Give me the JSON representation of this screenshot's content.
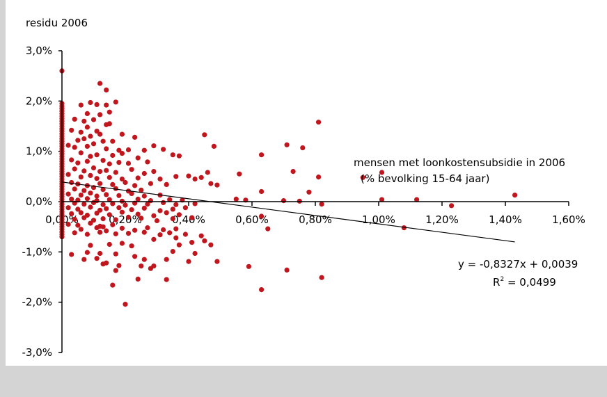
{
  "chart_data": {
    "type": "scatter",
    "ylabel": "residu 2006",
    "xlabel_line1": "mensen met loonkostensubsidie in 2006",
    "xlabel_line2": "(% bevolking 15-64 jaar)",
    "xlim": [
      0,
      0.016
    ],
    "ylim": [
      -0.03,
      0.03
    ],
    "x_ticks": [
      "0,00%",
      "0,20%",
      "0,40%",
      "0,60%",
      "0,80%",
      "1,00%",
      "1,20%",
      "1,40%",
      "1,60%"
    ],
    "y_ticks": [
      "3,0%",
      "2,0%",
      "1,0%",
      "0,0%",
      "-1,0%",
      "-2,0%",
      "-3,0%"
    ],
    "grid": false,
    "marker_color": "#c0161e",
    "trendline": {
      "slope": -0.8327,
      "intercept": 0.0039,
      "x_range": [
        0,
        0.0143
      ],
      "equation": "y = -0,8327x + 0,0039",
      "r2_base": "R",
      "r2_exp": "2",
      "r2_value": " = 0,0499"
    },
    "series": [
      {
        "points": [
          [
            0.0,
            0.026
          ],
          [
            0.0,
            0.0195
          ],
          [
            0.0,
            0.019
          ],
          [
            0.0,
            0.0185
          ],
          [
            0.0,
            0.018
          ],
          [
            0.0,
            0.0175
          ],
          [
            0.0,
            0.017
          ],
          [
            0.0,
            0.0165
          ],
          [
            0.0,
            0.016
          ],
          [
            0.0,
            0.0155
          ],
          [
            0.0,
            0.015
          ],
          [
            0.0,
            0.0145
          ],
          [
            0.0,
            0.014
          ],
          [
            0.0,
            0.0135
          ],
          [
            0.0,
            0.013
          ],
          [
            0.0,
            0.0125
          ],
          [
            0.0,
            0.012
          ],
          [
            0.0,
            0.0115
          ],
          [
            0.0,
            0.011
          ],
          [
            0.0,
            0.0105
          ],
          [
            0.0,
            0.01
          ],
          [
            0.0,
            0.0095
          ],
          [
            0.0,
            0.009
          ],
          [
            0.0,
            0.0085
          ],
          [
            0.0,
            0.008
          ],
          [
            0.0,
            0.0075
          ],
          [
            0.0,
            0.007
          ],
          [
            0.0,
            0.0065
          ],
          [
            0.0,
            0.006
          ],
          [
            0.0,
            0.0055
          ],
          [
            0.0,
            0.005
          ],
          [
            0.0,
            0.0045
          ],
          [
            0.0,
            0.004
          ],
          [
            0.0,
            0.0035
          ],
          [
            0.0,
            0.003
          ],
          [
            0.0,
            0.0025
          ],
          [
            0.0,
            0.002
          ],
          [
            0.0,
            0.0015
          ],
          [
            0.0,
            0.001
          ],
          [
            0.0,
            0.0005
          ],
          [
            0.0,
            0.0
          ],
          [
            0.0,
            -0.0005
          ],
          [
            0.0,
            -0.001
          ],
          [
            0.0,
            -0.0015
          ],
          [
            0.0,
            -0.002
          ],
          [
            0.0,
            -0.0025
          ],
          [
            0.0,
            -0.003
          ],
          [
            0.0,
            -0.0035
          ],
          [
            0.0,
            -0.004
          ],
          [
            0.0,
            -0.0045
          ],
          [
            0.0,
            -0.005
          ],
          [
            0.0,
            -0.0055
          ],
          [
            0.0,
            -0.006
          ],
          [
            0.0,
            -0.0065
          ],
          [
            0.0,
            -0.007
          ],
          [
            0.0012,
            0.0235
          ],
          [
            0.0014,
            0.0222
          ],
          [
            0.0009,
            0.0197
          ],
          [
            0.0011,
            0.0193
          ],
          [
            0.0006,
            0.0192
          ],
          [
            0.0014,
            0.0192
          ],
          [
            0.0017,
            0.0198
          ],
          [
            0.0008,
            0.0175
          ],
          [
            0.0012,
            0.0173
          ],
          [
            0.0015,
            0.0178
          ],
          [
            0.0004,
            0.0164
          ],
          [
            0.0007,
            0.016
          ],
          [
            0.001,
            0.0163
          ],
          [
            0.0014,
            0.0153
          ],
          [
            0.0015,
            0.0155
          ],
          [
            0.0003,
            0.0142
          ],
          [
            0.0008,
            0.0148
          ],
          [
            0.0011,
            0.014
          ],
          [
            0.0006,
            0.0138
          ],
          [
            0.0009,
            0.013
          ],
          [
            0.0012,
            0.0134
          ],
          [
            0.0019,
            0.0134
          ],
          [
            0.0023,
            0.0128
          ],
          [
            0.0005,
            0.0122
          ],
          [
            0.0007,
            0.0125
          ],
          [
            0.0013,
            0.012
          ],
          [
            0.0016,
            0.012
          ],
          [
            0.0002,
            0.0112
          ],
          [
            0.0004,
            0.0108
          ],
          [
            0.0008,
            0.011
          ],
          [
            0.001,
            0.0115
          ],
          [
            0.0014,
            0.0105
          ],
          [
            0.0018,
            0.0102
          ],
          [
            0.0021,
            0.0103
          ],
          [
            0.0026,
            0.0102
          ],
          [
            0.0029,
            0.0111
          ],
          [
            0.0032,
            0.0104
          ],
          [
            0.0006,
            0.0097
          ],
          [
            0.0009,
            0.009
          ],
          [
            0.0011,
            0.0093
          ],
          [
            0.0016,
            0.0092
          ],
          [
            0.0019,
            0.0096
          ],
          [
            0.0024,
            0.0087
          ],
          [
            0.0003,
            0.0083
          ],
          [
            0.0005,
            0.0077
          ],
          [
            0.0008,
            0.008
          ],
          [
            0.0013,
            0.0082
          ],
          [
            0.0015,
            0.0075
          ],
          [
            0.0018,
            0.0078
          ],
          [
            0.0021,
            0.0076
          ],
          [
            0.0027,
            0.0079
          ],
          [
            0.0035,
            0.0093
          ],
          [
            0.0037,
            0.0091
          ],
          [
            0.0004,
            0.0065
          ],
          [
            0.0007,
            0.0061
          ],
          [
            0.001,
            0.0067
          ],
          [
            0.0012,
            0.006
          ],
          [
            0.0014,
            0.0062
          ],
          [
            0.0017,
            0.0058
          ],
          [
            0.0022,
            0.0064
          ],
          [
            0.0026,
            0.0056
          ],
          [
            0.0029,
            0.006
          ],
          [
            0.0002,
            0.0054
          ],
          [
            0.0006,
            0.0049
          ],
          [
            0.0009,
            0.0052
          ],
          [
            0.0011,
            0.0046
          ],
          [
            0.0015,
            0.0048
          ],
          [
            0.0019,
            0.0045
          ],
          [
            0.0024,
            0.0047
          ],
          [
            0.0031,
            0.0045
          ],
          [
            0.0036,
            0.005
          ],
          [
            0.0003,
            0.0038
          ],
          [
            0.0005,
            0.0035
          ],
          [
            0.0008,
            0.0032
          ],
          [
            0.0012,
            0.0036
          ],
          [
            0.0016,
            0.0034
          ],
          [
            0.002,
            0.0038
          ],
          [
            0.0023,
            0.0032
          ],
          [
            0.0028,
            0.0036
          ],
          [
            0.0033,
            0.0034
          ],
          [
            0.0004,
            0.0025
          ],
          [
            0.0007,
            0.0022
          ],
          [
            0.001,
            0.0028
          ],
          [
            0.0013,
            0.0024
          ],
          [
            0.0017,
            0.0026
          ],
          [
            0.0021,
            0.0021
          ],
          [
            0.0025,
            0.0023
          ],
          [
            0.0002,
            0.0015
          ],
          [
            0.0006,
            0.0013
          ],
          [
            0.0009,
            0.0017
          ],
          [
            0.0011,
            0.0011
          ],
          [
            0.0014,
            0.0014
          ],
          [
            0.0018,
            0.0012
          ],
          [
            0.0022,
            0.0016
          ],
          [
            0.0026,
            0.0011
          ],
          [
            0.0031,
            0.0013
          ],
          [
            0.0003,
            0.0005
          ],
          [
            0.0005,
            0.0003
          ],
          [
            0.0008,
            0.0006
          ],
          [
            0.0011,
            0.0002
          ],
          [
            0.0015,
            0.0004
          ],
          [
            0.0019,
            0.0001
          ],
          [
            0.0024,
            0.0005
          ],
          [
            0.0028,
            0.0002
          ],
          [
            0.0034,
            0.0004
          ],
          [
            0.0038,
            0.0003
          ],
          [
            0.0004,
            -0.0003
          ],
          [
            0.0007,
            -0.0005
          ],
          [
            0.001,
            -0.0002
          ],
          [
            0.0013,
            -0.0006
          ],
          [
            0.0016,
            -0.0004
          ],
          [
            0.002,
            -0.0007
          ],
          [
            0.0023,
            -0.0003
          ],
          [
            0.0027,
            -0.0005
          ],
          [
            0.0032,
            -0.0002
          ],
          [
            0.0036,
            -0.0006
          ],
          [
            0.0042,
            -0.0004
          ],
          [
            0.0002,
            -0.0012
          ],
          [
            0.0005,
            -0.0015
          ],
          [
            0.0009,
            -0.0011
          ],
          [
            0.0012,
            -0.0017
          ],
          [
            0.0014,
            -0.0014
          ],
          [
            0.0018,
            -0.0012
          ],
          [
            0.0022,
            -0.0016
          ],
          [
            0.0026,
            -0.0013
          ],
          [
            0.0031,
            -0.0018
          ],
          [
            0.0035,
            -0.0015
          ],
          [
            0.0039,
            -0.0012
          ],
          [
            0.0003,
            -0.0024
          ],
          [
            0.0006,
            -0.0022
          ],
          [
            0.0008,
            -0.0027
          ],
          [
            0.0011,
            -0.0023
          ],
          [
            0.0015,
            -0.0026
          ],
          [
            0.0019,
            -0.0021
          ],
          [
            0.0024,
            -0.0025
          ],
          [
            0.0029,
            -0.0028
          ],
          [
            0.0033,
            -0.0022
          ],
          [
            0.0037,
            -0.0026
          ],
          [
            0.0004,
            -0.0035
          ],
          [
            0.0007,
            -0.0032
          ],
          [
            0.001,
            -0.0037
          ],
          [
            0.0013,
            -0.0034
          ],
          [
            0.0017,
            -0.0036
          ],
          [
            0.0021,
            -0.0031
          ],
          [
            0.0025,
            -0.0033
          ],
          [
            0.003,
            -0.0038
          ],
          [
            0.0035,
            -0.0034
          ],
          [
            0.0041,
            -0.0032
          ],
          [
            0.0002,
            -0.0045
          ],
          [
            0.0005,
            -0.0047
          ],
          [
            0.0009,
            -0.0043
          ],
          [
            0.0012,
            -0.0049
          ],
          [
            0.0016,
            -0.0046
          ],
          [
            0.0013,
            -0.005
          ],
          [
            0.0006,
            -0.0055
          ],
          [
            0.0011,
            -0.0052
          ],
          [
            0.0014,
            -0.0058
          ],
          [
            0.0019,
            -0.0053
          ],
          [
            0.0023,
            -0.0057
          ],
          [
            0.0027,
            -0.0052
          ],
          [
            0.0032,
            -0.0056
          ],
          [
            0.0036,
            -0.0054
          ],
          [
            0.0004,
            -0.0062
          ],
          [
            0.0008,
            -0.0065
          ],
          [
            0.0012,
            -0.0061
          ],
          [
            0.0017,
            -0.0064
          ],
          [
            0.0021,
            -0.0063
          ],
          [
            0.0026,
            -0.0061
          ],
          [
            0.0031,
            -0.0066
          ],
          [
            0.0034,
            -0.0062
          ],
          [
            0.0039,
            -0.0065
          ],
          [
            0.0044,
            -0.0068
          ],
          [
            0.0029,
            -0.0075
          ],
          [
            0.0036,
            -0.0072
          ],
          [
            0.0041,
            -0.0081
          ],
          [
            0.0045,
            -0.0078
          ],
          [
            0.0037,
            -0.0086
          ],
          [
            0.0047,
            -0.0086
          ],
          [
            0.0009,
            -0.0087
          ],
          [
            0.0015,
            -0.0085
          ],
          [
            0.0019,
            -0.0083
          ],
          [
            0.0022,
            -0.0088
          ],
          [
            0.0003,
            -0.0105
          ],
          [
            0.0008,
            -0.0101
          ],
          [
            0.0012,
            -0.0103
          ],
          [
            0.0017,
            -0.0104
          ],
          [
            0.0023,
            -0.0109
          ],
          [
            0.0035,
            -0.0099
          ],
          [
            0.0042,
            -0.0103
          ],
          [
            0.0049,
            -0.0119
          ],
          [
            0.0026,
            -0.0115
          ],
          [
            0.0033,
            -0.0115
          ],
          [
            0.004,
            -0.0119
          ],
          [
            0.0007,
            -0.0115
          ],
          [
            0.0011,
            -0.0113
          ],
          [
            0.0013,
            -0.0124
          ],
          [
            0.0014,
            -0.0122
          ],
          [
            0.0018,
            -0.0127
          ],
          [
            0.0025,
            -0.0128
          ],
          [
            0.0029,
            -0.0128
          ],
          [
            0.0028,
            -0.0133
          ],
          [
            0.0017,
            -0.0137
          ],
          [
            0.0024,
            -0.0154
          ],
          [
            0.0033,
            -0.0155
          ],
          [
            0.0016,
            -0.0166
          ],
          [
            0.002,
            -0.0204
          ],
          [
            0.0045,
            0.0133
          ],
          [
            0.0048,
            0.011
          ],
          [
            0.0044,
            0.0048
          ],
          [
            0.0047,
            0.0036
          ],
          [
            0.0046,
            0.0058
          ],
          [
            0.0042,
            0.0045
          ],
          [
            0.004,
            0.0051
          ],
          [
            0.0049,
            0.0033
          ],
          [
            0.0056,
            0.0055
          ],
          [
            0.0058,
            0.0003
          ],
          [
            0.0055,
            0.0005
          ],
          [
            0.0063,
            0.0093
          ],
          [
            0.0063,
            0.002
          ],
          [
            0.0063,
            -0.0029
          ],
          [
            0.0065,
            -0.0054
          ],
          [
            0.0059,
            -0.0129
          ],
          [
            0.0063,
            -0.0175
          ],
          [
            0.0071,
            0.0113
          ],
          [
            0.0073,
            0.006
          ],
          [
            0.0076,
            0.0107
          ],
          [
            0.0078,
            0.0019
          ],
          [
            0.007,
            0.0002
          ],
          [
            0.0075,
            0.0001
          ],
          [
            0.0081,
            0.0158
          ],
          [
            0.0081,
            0.0049
          ],
          [
            0.0082,
            -0.0005
          ],
          [
            0.0071,
            -0.0136
          ],
          [
            0.0082,
            -0.0151
          ],
          [
            0.0095,
            0.0048
          ],
          [
            0.0101,
            0.0058
          ],
          [
            0.0101,
            0.0004
          ],
          [
            0.0112,
            0.0004
          ],
          [
            0.0123,
            -0.0008
          ],
          [
            0.0108,
            -0.0052
          ],
          [
            0.0143,
            0.0013
          ]
        ]
      }
    ]
  }
}
